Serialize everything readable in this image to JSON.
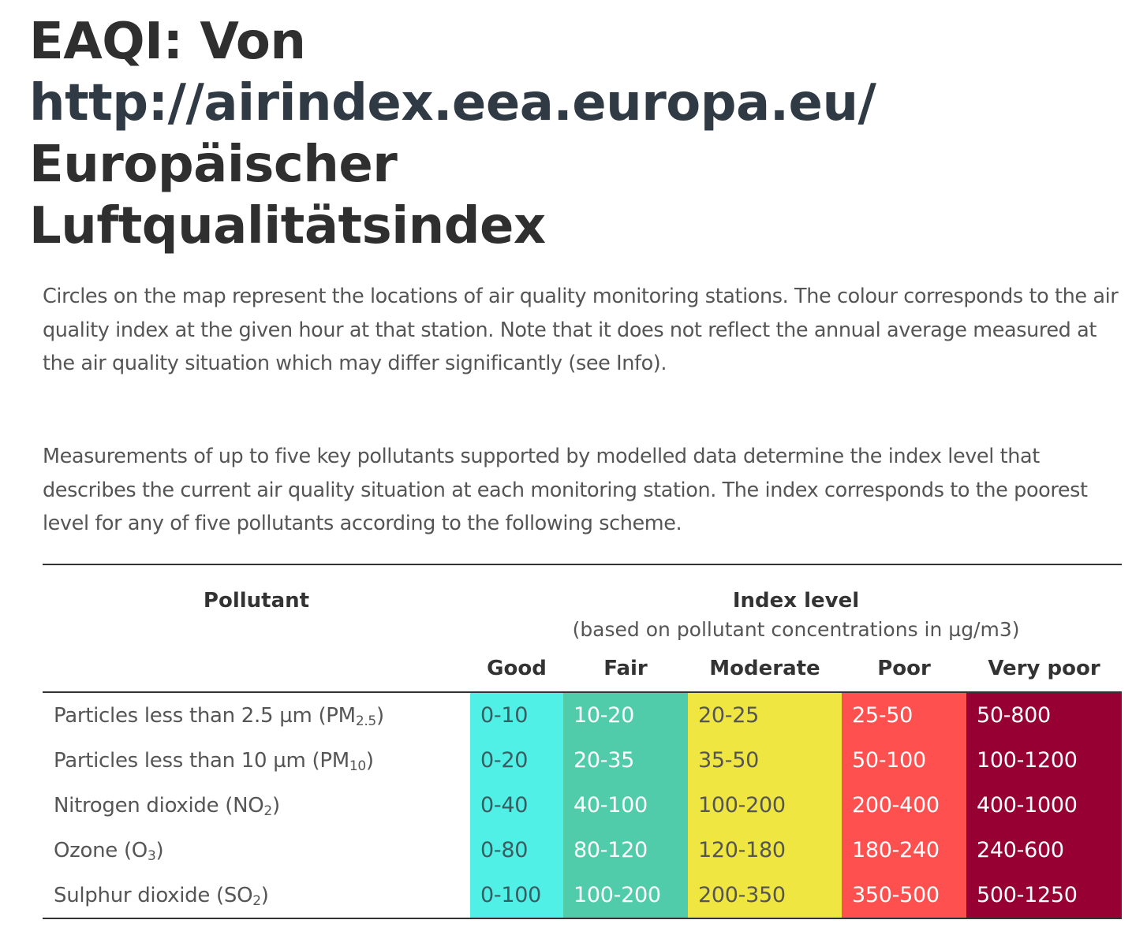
{
  "heading": {
    "line1": "EAQI: Von",
    "url": "http://airindex.eea.europa.eu/",
    "line3": "Europäischer",
    "line4": "Luftqualitätsindex"
  },
  "paragraphs": [
    "Circles on the map represent the locations of air quality monitoring stations. The colour corresponds to the air quality index at the given hour at that station. Note that it does not reflect the annual average measured at the air quality situation which may differ significantly (see Info).",
    "Measurements of up to five key pollutants supported by modelled data determine the index level that describes the current air quality situation at each monitoring station. The index corresponds to the poorest level for any of five pollutants according to the following scheme."
  ],
  "table": {
    "pollutant_header": "Pollutant",
    "index_header": "Index level",
    "index_subheader": "(based on pollutant concentrations in µg/m3)",
    "levels": [
      "Good",
      "Fair",
      "Moderate",
      "Poor",
      "Very poor"
    ],
    "level_colors": [
      "#50f0e6",
      "#50ccaa",
      "#f0e641",
      "#ff5050",
      "#960032"
    ],
    "rows": [
      {
        "name": "Particles less than 2.5 µm (PM",
        "sub": "2.5",
        "tail": ")",
        "values": [
          "0-10",
          "10-20",
          "20-25",
          "25-50",
          "50-800"
        ]
      },
      {
        "name": "Particles less than 10 µm (PM",
        "sub": "10",
        "tail": ")",
        "values": [
          "0-20",
          "20-35",
          "35-50",
          "50-100",
          "100-1200"
        ]
      },
      {
        "name": "Nitrogen dioxide (NO",
        "sub": "2",
        "tail": ")",
        "values": [
          "0-40",
          "40-100",
          "100-200",
          "200-400",
          "400-1000"
        ]
      },
      {
        "name": "Ozone (O",
        "sub": "3",
        "tail": ")",
        "values": [
          "0-80",
          "80-120",
          "120-180",
          "180-240",
          "240-600"
        ]
      },
      {
        "name": "Sulphur dioxide (SO",
        "sub": "2",
        "tail": ")",
        "values": [
          "0-100",
          "100-200",
          "200-350",
          "350-500",
          "500-1250"
        ]
      }
    ]
  }
}
